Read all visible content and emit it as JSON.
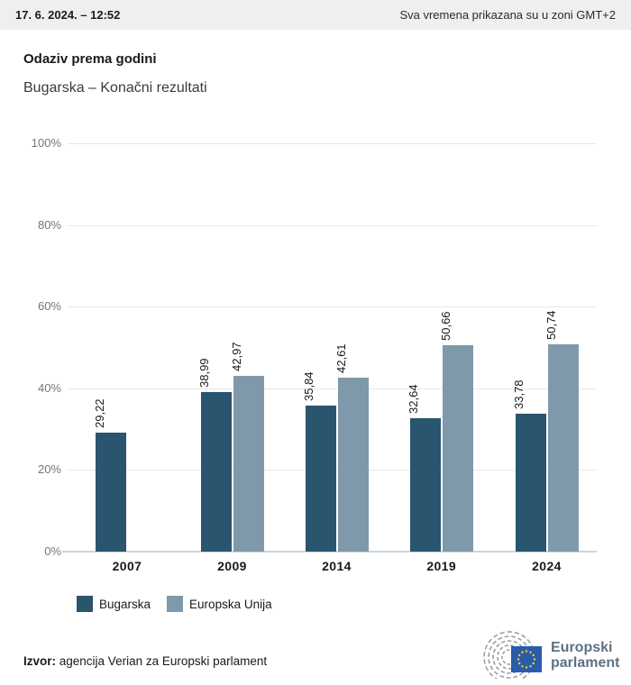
{
  "header": {
    "timestamp": "17. 6. 2024. – 12:52",
    "timezone_note": "Sva vremena prikazana su u zoni GMT+2"
  },
  "title": "Odaziv prema godini",
  "subtitle": "Bugarska – Konačni rezultati",
  "chart_data": {
    "type": "bar",
    "title": "Odaziv prema godini",
    "subtitle": "Bugarska – Konačni rezultati",
    "categories": [
      "2007",
      "2009",
      "2014",
      "2019",
      "2024"
    ],
    "series": [
      {
        "name": "Bugarska",
        "color": "#29556f",
        "values": [
          29.22,
          38.99,
          35.84,
          32.64,
          33.78
        ]
      },
      {
        "name": "Europska Unija",
        "color": "#7f99ab",
        "values": [
          null,
          42.97,
          42.61,
          50.66,
          50.74
        ]
      }
    ],
    "value_labels": [
      [
        "29,22",
        "38,99",
        "35,84",
        "32,64",
        "33,78"
      ],
      [
        null,
        "42,97",
        "42,61",
        "50,66",
        "50,74"
      ]
    ],
    "xlabel": "",
    "ylabel": "",
    "ylim": [
      0,
      100
    ],
    "yticks": [
      0,
      20,
      40,
      60,
      80,
      100
    ],
    "ytick_labels": [
      "0%",
      "20%",
      "40%",
      "60%",
      "80%",
      "100%"
    ],
    "grid": true,
    "legend_position": "bottom",
    "value_label_rotation": -90,
    "decimal_separator": ","
  },
  "legend": {
    "items": [
      {
        "label": "Bugarska",
        "color": "#29556f"
      },
      {
        "label": "Europska Unija",
        "color": "#7f99ab"
      }
    ]
  },
  "footer": {
    "source_label": "Izvor:",
    "source_text": " agencija Verian za Europski parlament",
    "logo": {
      "line1": "Europski",
      "line2": "parlament"
    }
  },
  "colors": {
    "bulgaria_bar": "#29556f",
    "eu_bar": "#7f99ab",
    "header_background": "#efefef",
    "gridline": "#e8e8e8",
    "axis_line": "#c9d6e0",
    "tick_text": "#767676",
    "logo_text": "#5d7283",
    "eu_flag_blue": "#2a5caa",
    "eu_flag_stars": "#f8d12e"
  }
}
